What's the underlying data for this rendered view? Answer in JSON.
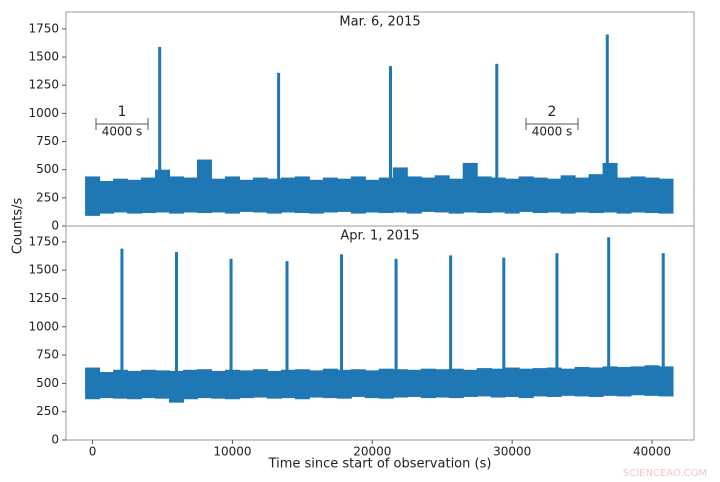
{
  "chart_data": [
    {
      "type": "range",
      "title": "Mar. 6, 2015",
      "ylabel": "Counts/s",
      "color": "#1f77b4",
      "xlim": [
        -1900,
        43000
      ],
      "ylim": [
        0,
        1900
      ],
      "yticks": [
        0,
        250,
        500,
        750,
        1000,
        1250,
        1500,
        1750
      ],
      "x": [
        0,
        1000,
        2000,
        3000,
        4000,
        5000,
        6000,
        7000,
        8000,
        9000,
        10000,
        11000,
        12000,
        13000,
        14000,
        15000,
        16000,
        17000,
        18000,
        19000,
        20000,
        21000,
        22000,
        23000,
        24000,
        25000,
        26000,
        27000,
        28000,
        29000,
        30000,
        31000,
        32000,
        33000,
        34000,
        35000,
        36000,
        37000,
        38000,
        39000,
        40000,
        41000
      ],
      "low": [
        90,
        110,
        120,
        110,
        115,
        120,
        110,
        120,
        115,
        120,
        110,
        125,
        120,
        110,
        120,
        115,
        110,
        120,
        125,
        110,
        120,
        115,
        120,
        110,
        125,
        120,
        110,
        120,
        115,
        120,
        110,
        125,
        115,
        120,
        110,
        120,
        115,
        120,
        110,
        120,
        115,
        110
      ],
      "high": [
        440,
        400,
        420,
        410,
        430,
        500,
        440,
        430,
        590,
        420,
        440,
        410,
        430,
        420,
        430,
        440,
        410,
        430,
        420,
        440,
        410,
        430,
        520,
        440,
        430,
        450,
        420,
        560,
        440,
        430,
        420,
        440,
        430,
        420,
        450,
        430,
        460,
        560,
        430,
        440,
        430,
        420
      ],
      "spike_x": [
        4800,
        13300,
        21300,
        28900,
        36800
      ],
      "spike_low": [
        300,
        300,
        300,
        300,
        300
      ],
      "spike_high": [
        1590,
        1360,
        1420,
        1440,
        1700
      ],
      "annotations": [
        "1",
        "4000 s",
        "2",
        "4000 s"
      ]
    },
    {
      "type": "range",
      "title": "Apr. 1, 2015",
      "xlabel": "Time since start of observation (s)",
      "color": "#1f77b4",
      "xlim": [
        -1900,
        43000
      ],
      "ylim": [
        0,
        1890
      ],
      "yticks": [
        0,
        250,
        500,
        750,
        1000,
        1250,
        1500,
        1750
      ],
      "xticks": [
        0,
        10000,
        20000,
        30000,
        40000
      ],
      "x": [
        0,
        1000,
        2000,
        3000,
        4000,
        5000,
        6000,
        7000,
        8000,
        9000,
        10000,
        11000,
        12000,
        13000,
        14000,
        15000,
        16000,
        17000,
        18000,
        19000,
        20000,
        21000,
        22000,
        23000,
        24000,
        25000,
        26000,
        27000,
        28000,
        29000,
        30000,
        31000,
        32000,
        33000,
        34000,
        35000,
        36000,
        37000,
        38000,
        39000,
        40000,
        41000
      ],
      "low": [
        360,
        370,
        365,
        360,
        370,
        365,
        330,
        360,
        370,
        365,
        360,
        370,
        375,
        365,
        370,
        360,
        375,
        370,
        365,
        380,
        370,
        365,
        375,
        380,
        370,
        375,
        370,
        380,
        385,
        375,
        380,
        370,
        385,
        380,
        390,
        385,
        380,
        390,
        385,
        395,
        390,
        385
      ],
      "high": [
        640,
        600,
        620,
        610,
        620,
        615,
        610,
        620,
        625,
        610,
        620,
        615,
        625,
        610,
        620,
        625,
        615,
        630,
        620,
        625,
        615,
        630,
        625,
        620,
        630,
        625,
        630,
        620,
        635,
        630,
        640,
        630,
        635,
        640,
        630,
        645,
        640,
        650,
        645,
        650,
        660,
        650
      ],
      "spike_x": [
        2100,
        6000,
        9900,
        13900,
        17800,
        21700,
        25600,
        29400,
        33200,
        36900,
        40800
      ],
      "spike_low": [
        550,
        550,
        550,
        550,
        550,
        550,
        550,
        550,
        550,
        550,
        550
      ],
      "spike_high": [
        1690,
        1660,
        1600,
        1580,
        1640,
        1600,
        1630,
        1610,
        1650,
        1790,
        1650
      ]
    }
  ],
  "watermark": "SCIENCEAO.COM"
}
